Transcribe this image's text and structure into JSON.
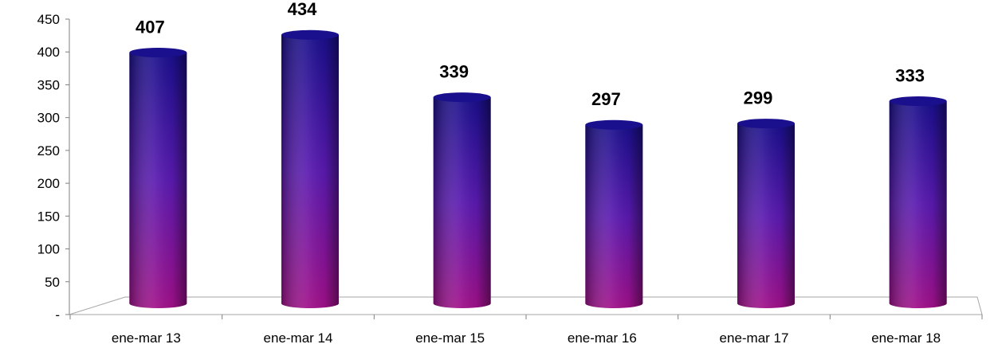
{
  "chart_data": {
    "type": "bar",
    "title": "",
    "xlabel": "",
    "ylabel": "",
    "categories": [
      "ene-mar 13",
      "ene-mar 14",
      "ene-mar 15",
      "ene-mar 16",
      "ene-mar 17",
      "ene-mar 18"
    ],
    "values": [
      407,
      434,
      339,
      297,
      299,
      333
    ],
    "ylim": [
      0,
      450
    ],
    "yticks": [
      0,
      50,
      100,
      150,
      200,
      250,
      300,
      350,
      400,
      450
    ],
    "ytick_labels": [
      "-",
      "50",
      "100",
      "150",
      "200",
      "250",
      "300",
      "350",
      "400",
      "450"
    ],
    "grid": false,
    "legend": "none",
    "colors": {
      "bar_top": "#1a0f8c",
      "bar_bottom": "#a0108a",
      "bar_mid": "#5a1ab0"
    }
  }
}
